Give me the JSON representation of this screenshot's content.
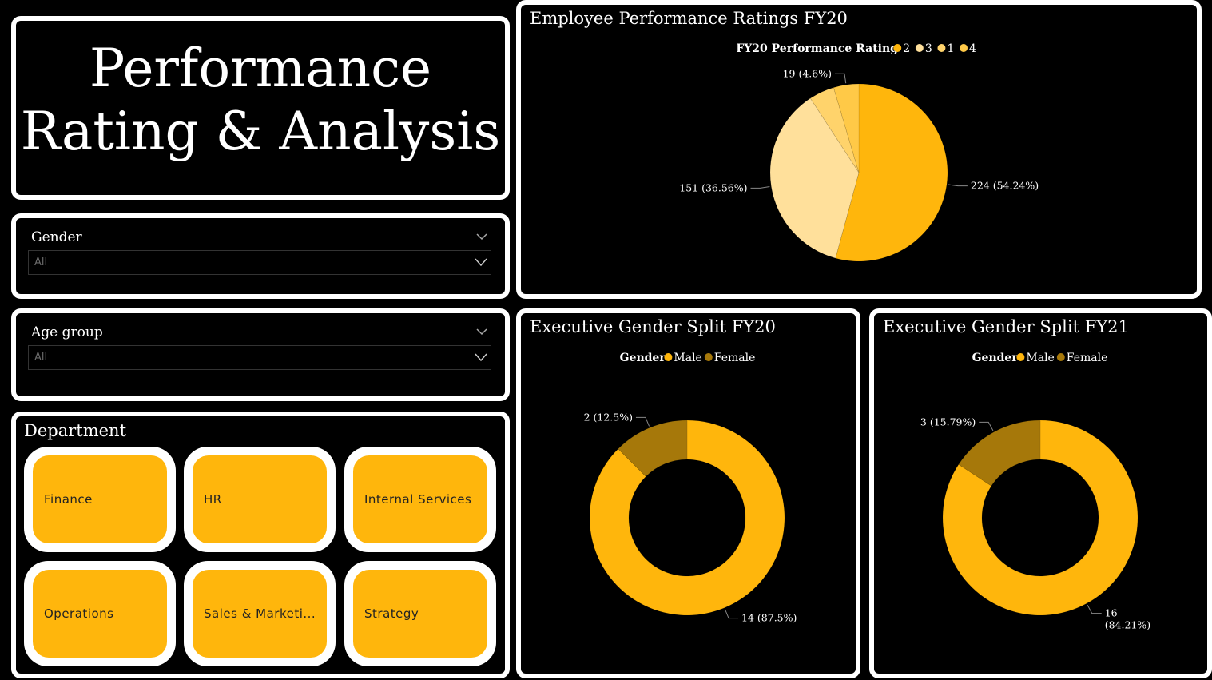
{
  "header": {
    "title_line1": "Performance",
    "title_line2": "Rating & Analysis"
  },
  "slicers": {
    "gender": {
      "label": "Gender",
      "value": "All"
    },
    "age_group": {
      "label": "Age group",
      "value": "All"
    }
  },
  "department": {
    "title": "Department",
    "tiles": [
      "Finance",
      "HR",
      "Internal Services",
      "Operations",
      "Sales & Marketi...",
      "Strategy"
    ]
  },
  "colors": {
    "accent": "#FFB60C",
    "rating_2": "#FFB60C",
    "rating_3": "#FFE09B",
    "rating_1": "#FFD36B",
    "rating_4": "#FFC947",
    "male": "#FFB60C",
    "female": "#A6780A"
  },
  "chart_data": [
    {
      "type": "pie",
      "title": "Employee Performance Ratings FY20",
      "legend_title": "FY20 Performance Rating",
      "legend_placement": "top",
      "categories": [
        "2",
        "3",
        "1",
        "4"
      ],
      "values": [
        224,
        151,
        19,
        19
      ],
      "labels": [
        "224 (54.24%)",
        "151 (36.56%)",
        "",
        "19 (4.6%)"
      ]
    },
    {
      "type": "pie",
      "donut": true,
      "title": "Executive Gender Split FY20",
      "legend_title": "Gender",
      "legend_placement": "top",
      "categories": [
        "Male",
        "Female"
      ],
      "values": [
        14,
        2
      ],
      "labels": [
        "14 (87.5%)",
        "2 (12.5%)"
      ]
    },
    {
      "type": "pie",
      "donut": true,
      "title": "Executive Gender Split FY21",
      "legend_title": "Gender",
      "legend_placement": "top",
      "categories": [
        "Male",
        "Female"
      ],
      "values": [
        16,
        3
      ],
      "labels": [
        "16 (84.21%)",
        "3 (15.79%)"
      ]
    }
  ]
}
